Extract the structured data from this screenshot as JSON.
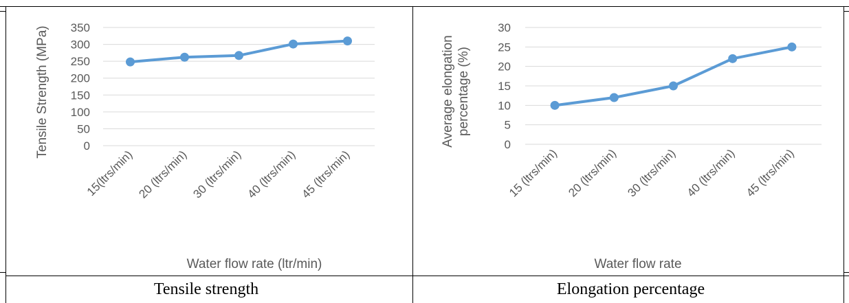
{
  "captions": {
    "left": "Tensile strength",
    "right": "Elongation percentage"
  },
  "colors": {
    "series": "#5B9BD5",
    "grid": "#D9D9D9",
    "text": "#595959",
    "border": "#000000"
  },
  "chart_data": [
    {
      "type": "line",
      "categories": [
        "15(ltrs/min)",
        "20 (ltrs/min)",
        "30 (ltrs/min)",
        "40 (ltrs/min)",
        "45 (ltrs/min)"
      ],
      "series": [
        {
          "values": [
            248,
            262,
            267,
            301,
            310
          ]
        }
      ],
      "title": "",
      "xlabel": "Water flow rate (ltr/min)",
      "ylabel": "Tensile Strength  (MPa)",
      "ylim": [
        0,
        350
      ],
      "yticks": [
        0,
        50,
        100,
        150,
        200,
        250,
        300,
        350
      ],
      "grid": true,
      "legend": "none"
    },
    {
      "type": "line",
      "categories": [
        "15  (ltrs/min)",
        "20 (ltrs/min)",
        "30 (ltrs/min)",
        "40 (ltrs/min)",
        "45 (ltrs/min)"
      ],
      "series": [
        {
          "values": [
            10,
            12,
            15,
            22,
            25
          ]
        }
      ],
      "title": "",
      "xlabel": "Water flow rate",
      "ylabel": [
        "Average elongation",
        "percentage (%)"
      ],
      "ylim": [
        0,
        30
      ],
      "yticks": [
        0,
        5,
        10,
        15,
        20,
        25,
        30
      ],
      "grid": true,
      "legend": "none"
    }
  ]
}
